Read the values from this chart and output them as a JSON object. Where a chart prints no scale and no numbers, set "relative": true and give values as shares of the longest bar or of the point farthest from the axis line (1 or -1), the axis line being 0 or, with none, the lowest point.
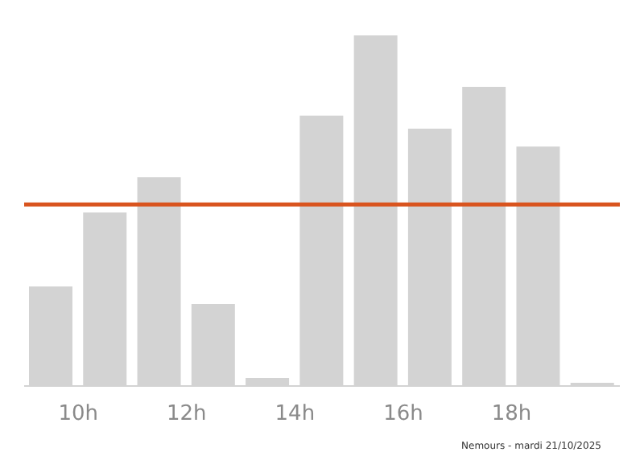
{
  "chart_data": {
    "type": "bar",
    "relative": true,
    "x": [
      9.5,
      10.5,
      11.5,
      12.5,
      13.5,
      14.5,
      15.5,
      16.5,
      17.5,
      18.5,
      19.5
    ],
    "values": [
      0.284,
      0.495,
      0.596,
      0.234,
      0.023,
      0.771,
      1,
      0.734,
      0.853,
      0.683,
      0.009
    ],
    "color": "#d3d3d3",
    "xlim": [
      9,
      20
    ],
    "xticks": [
      {
        "value": 10,
        "label": "10h"
      },
      {
        "value": 12,
        "label": "12h"
      },
      {
        "value": 14,
        "label": "14h"
      },
      {
        "value": 16,
        "label": "16h"
      },
      {
        "value": 18,
        "label": "18h"
      }
    ],
    "ref_lines": [
      {
        "axis": "y",
        "value": 0.518,
        "color": "#d9541e"
      }
    ],
    "annotations": [
      "Nemours - mardi 21/10/2025"
    ],
    "grid": false,
    "legend": false
  }
}
